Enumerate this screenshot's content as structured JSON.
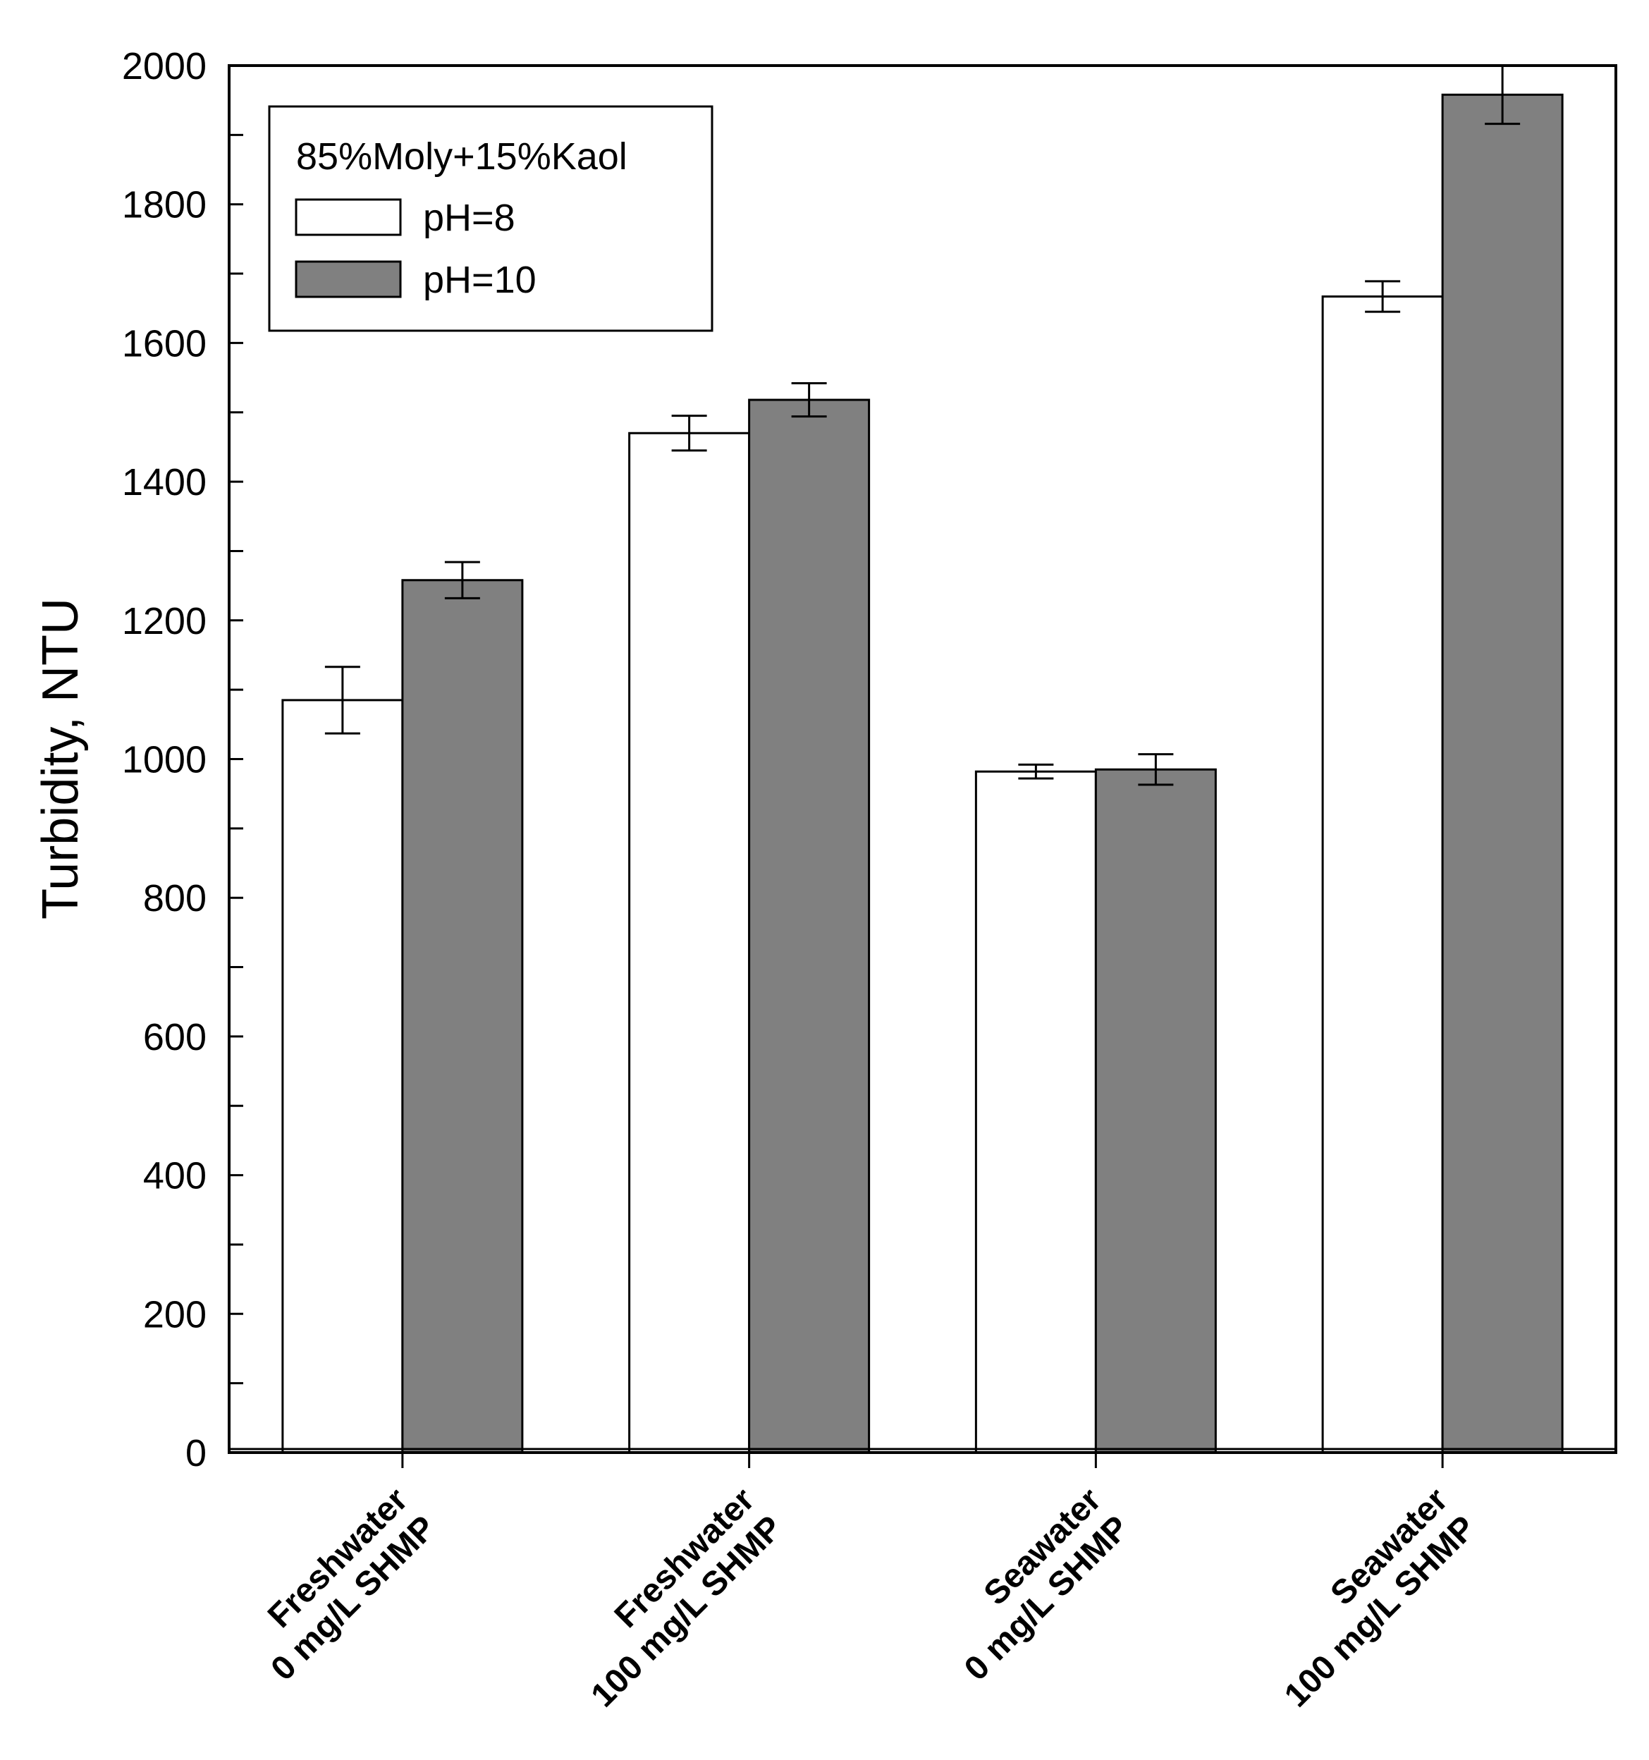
{
  "chart_data": {
    "type": "bar",
    "title": "",
    "xlabel": "",
    "ylabel": "Turbidity, NTU",
    "ylim": [
      0,
      2000
    ],
    "yticks": [
      0,
      200,
      400,
      600,
      800,
      1000,
      1200,
      1400,
      1600,
      1800,
      2000
    ],
    "grid": false,
    "categories": [
      [
        "Freshwater",
        "0 mg/L SHMP"
      ],
      [
        "Freshwater",
        "100 mg/L SHMP"
      ],
      [
        "Seawater",
        "0 mg/L SHMP"
      ],
      [
        "Seawater",
        "100 mg/L SHMP"
      ]
    ],
    "legend": {
      "title": "85%Moly+15%Kaol",
      "position": "top-left"
    },
    "series": [
      {
        "name": "pH=8",
        "color": "#ffffff",
        "values": [
          1085,
          1470,
          982,
          1667
        ],
        "errors": [
          48,
          25,
          10,
          22
        ]
      },
      {
        "name": "pH=10",
        "color": "#808080",
        "values": [
          1258,
          1518,
          985,
          1958
        ],
        "errors": [
          26,
          24,
          22,
          42
        ]
      }
    ]
  }
}
